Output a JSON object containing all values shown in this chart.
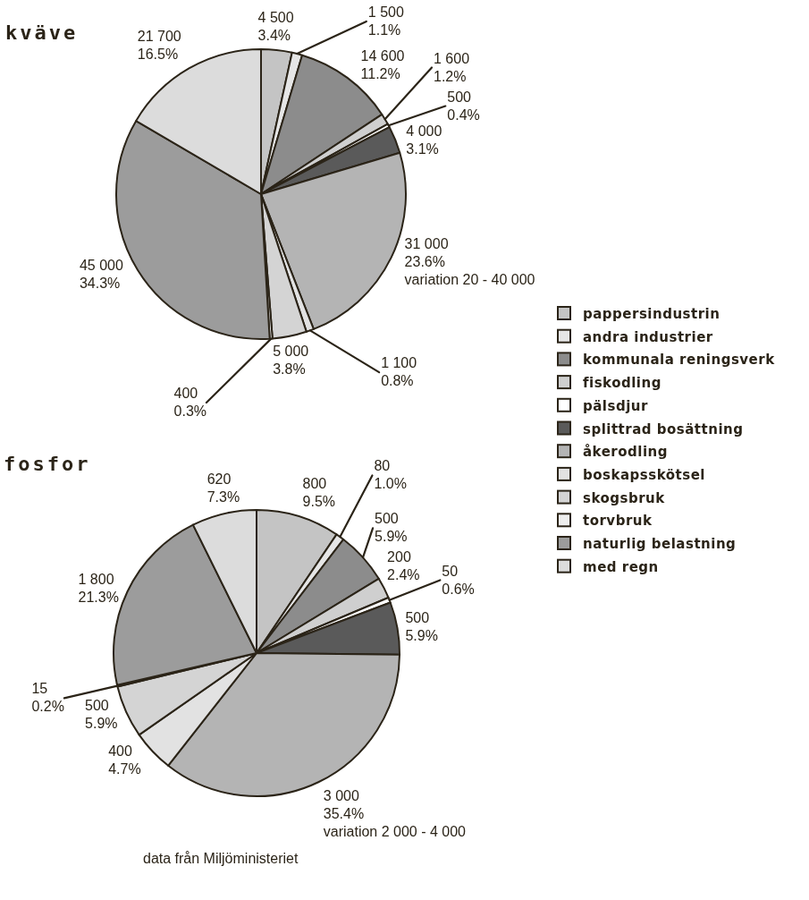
{
  "chart_data": [
    {
      "type": "pie",
      "title": "kväve",
      "categories": [
        "pappersindustrin",
        "andra industrier",
        "kommunala reningsverk",
        "fiskodling",
        "pälsdjur",
        "splittrad bosättning",
        "åkerodling",
        "boskapsskötsel",
        "skogsbruk",
        "torvbruk",
        "naturlig belastning",
        "med regn"
      ],
      "values": [
        4500,
        1500,
        14600,
        1600,
        500,
        4000,
        31000,
        1100,
        5000,
        400,
        45000,
        21700
      ],
      "colors": [
        "#c4c4c4",
        "#e6e6e6",
        "#8c8c8c",
        "#cfcfcf",
        "#ffffff",
        "#5a5a5a",
        "#b4b4b4",
        "#e2e2e2",
        "#d4d4d4",
        "#eeeeee",
        "#9c9c9c",
        "#dcdcdc"
      ],
      "value_labels": [
        "4 500\n3.4%",
        "1 500\n1.1%",
        "14 600\n11.2%",
        "1 600\n1.2%",
        "500\n0.4%",
        "4 000\n3.1%",
        "31 000\n23.6%\nvariation 20 - 40 000",
        "1 100\n0.8%",
        "5 000\n3.8%",
        "400\n0.3%",
        "45 000\n34.3%",
        "21 700\n16.5%"
      ],
      "legend": "right"
    },
    {
      "type": "pie",
      "title": "fosfor",
      "categories": [
        null,
        null,
        null,
        null,
        null,
        null,
        null,
        null,
        null,
        null,
        null,
        null
      ],
      "values": [
        800,
        80,
        500,
        200,
        50,
        500,
        3000,
        400,
        500,
        15,
        1800,
        620
      ],
      "colors": [
        "#c4c4c4",
        "#e6e6e6",
        "#8c8c8c",
        "#cfcfcf",
        "#ffffff",
        "#5a5a5a",
        "#b4b4b4",
        "#e2e2e2",
        "#d4d4d4",
        "#eeeeee",
        "#9c9c9c",
        "#dcdcdc"
      ],
      "value_labels": [
        "800\n9.5%",
        "80\n1.0%",
        "500\n5.9%",
        "200\n2.4%",
        "50\n0.6%",
        "500\n5.9%",
        "3 000\n35.4%\nvariation 2 000 - 4 000",
        "400\n4.7%",
        "500\n5.9%",
        "15\n0.2%",
        "1 800\n21.3%",
        "620\n7.3%"
      ],
      "annotations": [
        "data från Miljöministeriet"
      ]
    }
  ]
}
